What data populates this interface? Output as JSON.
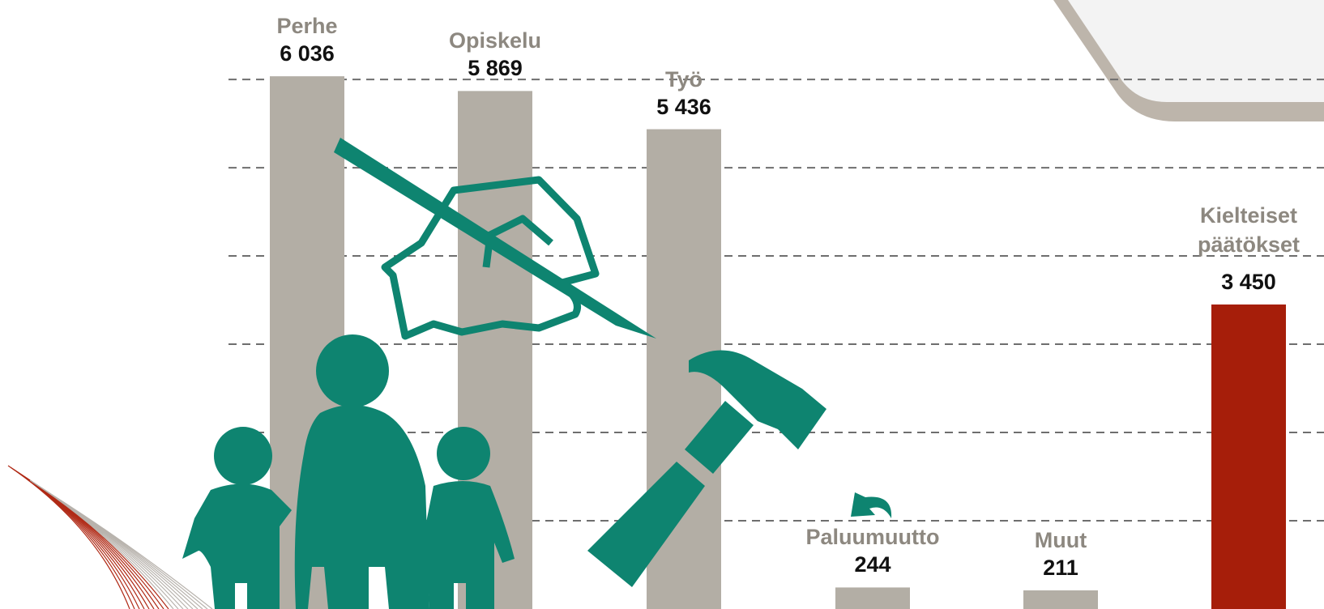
{
  "chart_data": {
    "type": "bar",
    "categories": [
      "Perhe",
      "Opiskelu",
      "Työ",
      "Paluumuutto",
      "Muut",
      "Kielteiset päätökset"
    ],
    "values": [
      6036,
      5869,
      5436,
      244,
      211,
      3450
    ],
    "value_labels": [
      "6 036",
      "5 869",
      "5 436",
      "244",
      "211",
      "3 450"
    ],
    "colors": [
      "#b3aea5",
      "#b3aea5",
      "#b3aea5",
      "#b3aea5",
      "#b3aea5",
      "#a61e0a"
    ],
    "ylim": [
      0,
      6900
    ],
    "yticks": [
      1000,
      2000,
      3000,
      4000,
      5000,
      6000
    ],
    "grid": true
  }
}
